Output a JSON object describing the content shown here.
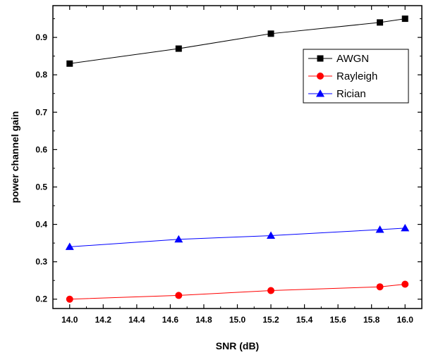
{
  "chart_data": {
    "type": "line",
    "xlabel": "SNR (dB)",
    "ylabel": "power channel gain",
    "xlim": [
      13.9,
      16.1
    ],
    "ylim": [
      0.175,
      0.985
    ],
    "x_ticks": [
      "14.0",
      "14.2",
      "14.4",
      "14.6",
      "14.8",
      "15.0",
      "15.2",
      "15.4",
      "15.6",
      "15.8",
      "16.0"
    ],
    "y_ticks": [
      "0.2",
      "0.3",
      "0.4",
      "0.5",
      "0.6",
      "0.7",
      "0.8",
      "0.9"
    ],
    "legend_position": "top-right",
    "x": [
      14.0,
      14.65,
      15.2,
      15.85,
      16.0
    ],
    "series": [
      {
        "name": "AWGN",
        "values": [
          0.83,
          0.87,
          0.91,
          0.94,
          0.95
        ],
        "color": "#000000",
        "marker": "square"
      },
      {
        "name": "Rayleigh",
        "values": [
          0.2,
          0.21,
          0.223,
          0.233,
          0.24
        ],
        "color": "#ff0000",
        "marker": "circle"
      },
      {
        "name": "Rician",
        "values": [
          0.34,
          0.36,
          0.37,
          0.386,
          0.39
        ],
        "color": "#0000ff",
        "marker": "triangle"
      }
    ]
  }
}
